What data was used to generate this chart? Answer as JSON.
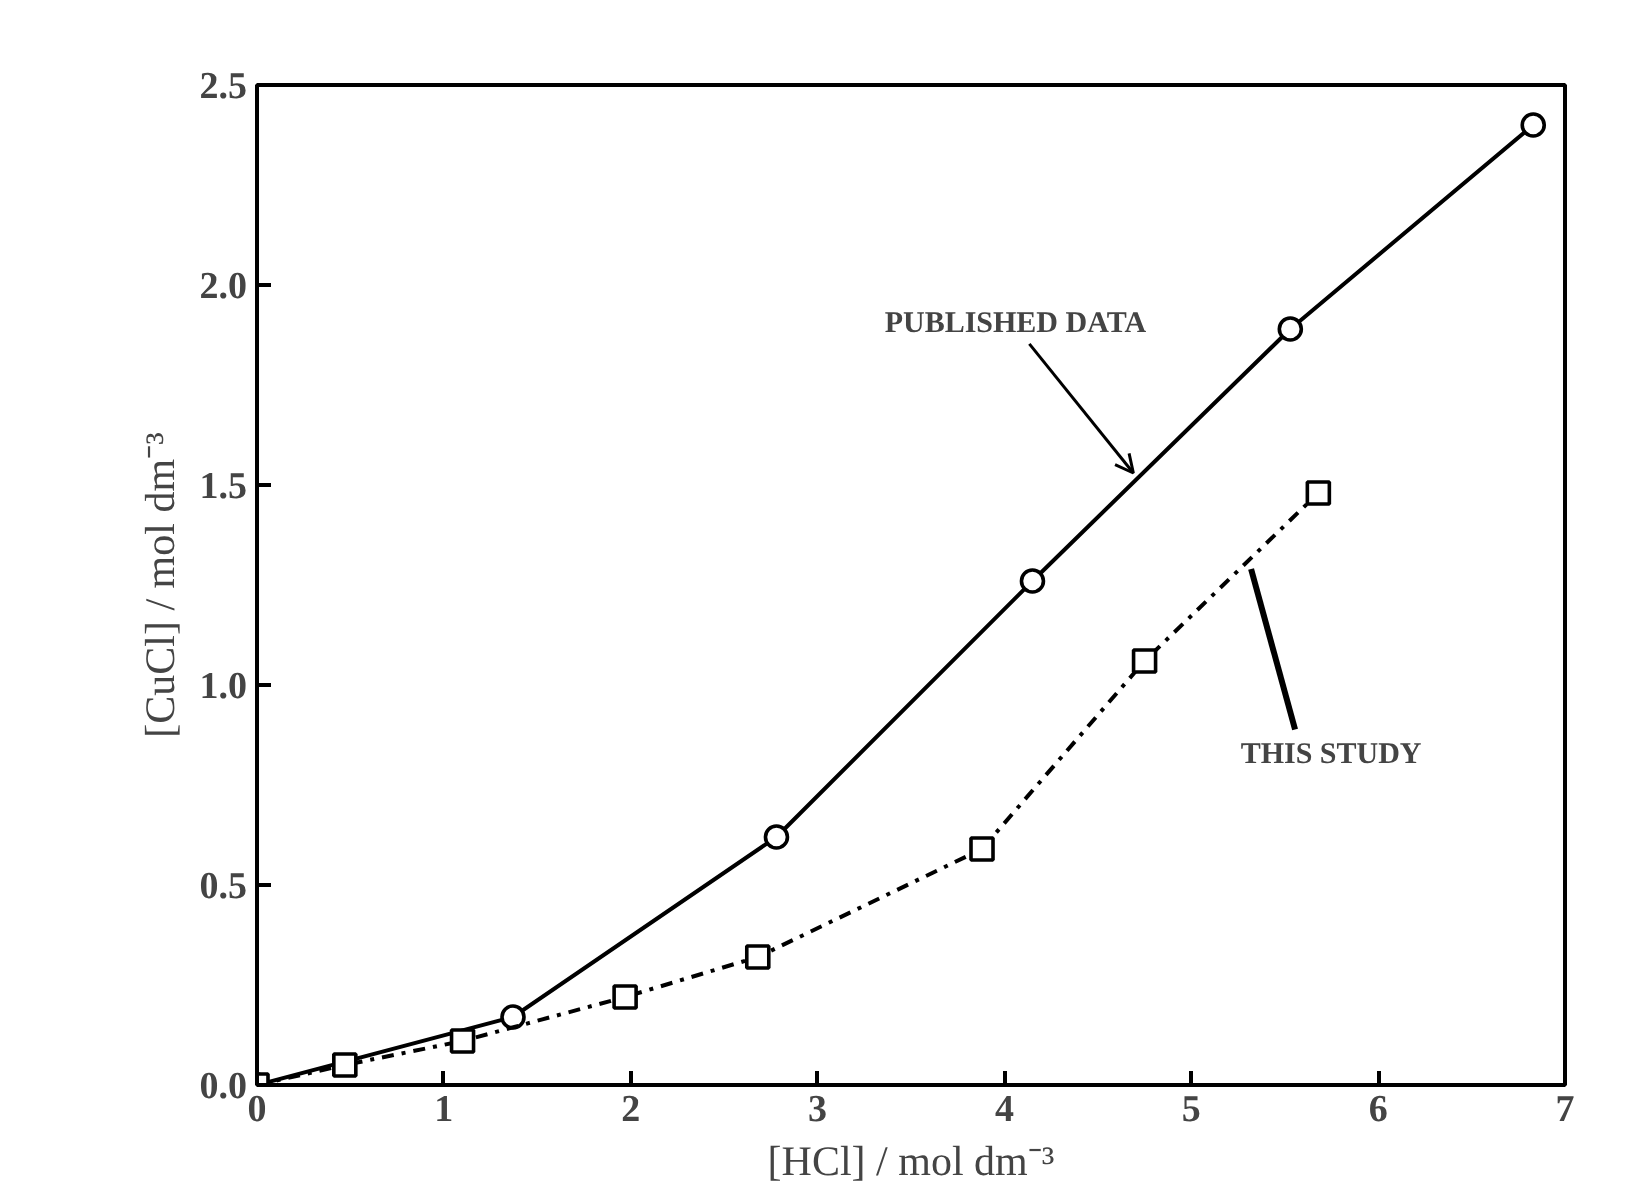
{
  "chart_data": {
    "type": "line",
    "xlabel": "[HCl] / mol dm⁻³",
    "ylabel": "[CuCl] / mol dm⁻³",
    "xlim": [
      0,
      7
    ],
    "ylim": [
      0,
      2.5
    ],
    "xticks": [
      0,
      1,
      2,
      3,
      4,
      5,
      6,
      7
    ],
    "yticks": [
      {
        "value": 0,
        "label": "0.0"
      },
      {
        "value": 0.5,
        "label": "0.5"
      },
      {
        "value": 1,
        "label": "1.0"
      },
      {
        "value": 1.5,
        "label": "1.5"
      },
      {
        "value": 2,
        "label": "2.0"
      },
      {
        "value": 2.5,
        "label": "2.5"
      }
    ],
    "grid": false,
    "series": [
      {
        "color": "#000000",
        "marker": "circle",
        "line_style": "solid",
        "x": [
          0,
          1.37,
          2.78,
          4.15,
          5.53,
          6.83
        ],
        "values": [
          0,
          0.17,
          0.62,
          1.26,
          1.89,
          2.4
        ]
      },
      {
        "color": "#000000",
        "marker": "square",
        "line_style": "dashdot",
        "x": [
          0,
          0.47,
          1.1,
          1.97,
          2.68,
          3.88,
          4.75,
          5.68
        ],
        "values": [
          0,
          0.05,
          0.11,
          0.22,
          0.32,
          0.59,
          1.06,
          1.48
        ]
      }
    ],
    "annotations": [
      {
        "text": "PUBLISHED DATA",
        "x": 4.69,
        "y": 1.53
      },
      {
        "text": "THIS STUDY",
        "x": 5.32,
        "y": 1.29
      }
    ]
  }
}
